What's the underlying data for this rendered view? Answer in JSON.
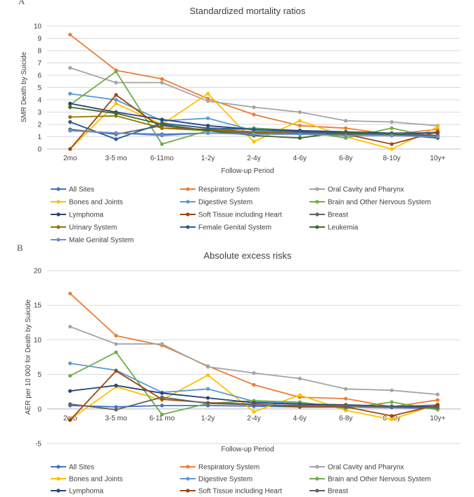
{
  "panels": [
    {
      "letter": "A"
    },
    {
      "letter": "B"
    }
  ],
  "chart_data": [
    {
      "type": "line",
      "title": "Standardized mortality ratios",
      "xlabel": "Follow-up Period",
      "ylabel": "SMR Death by Suicide",
      "ylim": [
        0,
        10
      ],
      "yticks": [
        0,
        1,
        2,
        3,
        4,
        5,
        6,
        7,
        8,
        9,
        10
      ],
      "grid": "horizontal",
      "legend_position": "bottom",
      "categories": [
        "2mo",
        "3-5 mo",
        "6-11mo",
        "1-2y",
        "2-4y",
        "4-6y",
        "6-8y",
        "8-10y",
        "10y+"
      ],
      "series": [
        {
          "name": "All Sites",
          "color": "#4472c4",
          "values": [
            1.5,
            1.3,
            1.2,
            1.3,
            1.3,
            1.2,
            1.2,
            1.1,
            1.1
          ]
        },
        {
          "name": "Respiratory System",
          "color": "#ed7d31",
          "values": [
            9.3,
            6.4,
            5.7,
            4.1,
            2.8,
            1.9,
            1.7,
            1.2,
            1.6
          ]
        },
        {
          "name": "Oral Cavity and Pharynx",
          "color": "#a5a5a5",
          "values": [
            6.6,
            5.4,
            5.4,
            3.9,
            3.4,
            3.0,
            2.3,
            2.2,
            1.9
          ]
        },
        {
          "name": "Bones and Joints",
          "color": "#ffc000",
          "values": [
            0.0,
            3.7,
            2.0,
            4.5,
            0.6,
            2.3,
            1.0,
            0.0,
            1.8
          ]
        },
        {
          "name": "Digestive System",
          "color": "#5b9bd5",
          "values": [
            4.5,
            4.0,
            2.3,
            2.5,
            1.5,
            1.3,
            1.2,
            1.1,
            1.4
          ]
        },
        {
          "name": "Brain and Other Nervous System",
          "color": "#70ad47",
          "values": [
            3.6,
            6.3,
            0.4,
            1.5,
            1.7,
            1.5,
            0.9,
            1.7,
            0.9
          ]
        },
        {
          "name": "Lymphoma",
          "color": "#264478",
          "values": [
            3.7,
            3.0,
            2.4,
            1.9,
            1.6,
            1.5,
            1.4,
            1.3,
            1.3
          ]
        },
        {
          "name": "Soft Tissue including Heart",
          "color": "#9e480e",
          "values": [
            0.0,
            4.4,
            1.7,
            1.6,
            1.4,
            1.3,
            1.2,
            0.4,
            1.4
          ]
        },
        {
          "name": "Breast",
          "color": "#636363",
          "values": [
            1.6,
            1.2,
            1.9,
            1.5,
            1.3,
            1.3,
            1.2,
            1.3,
            1.1
          ]
        },
        {
          "name": "Urinary System",
          "color": "#997300",
          "values": [
            2.6,
            2.7,
            1.7,
            1.5,
            1.4,
            1.2,
            1.3,
            1.2,
            1.0
          ]
        },
        {
          "name": "Female Genital System",
          "color": "#255e91",
          "values": [
            2.2,
            0.8,
            2.1,
            1.7,
            1.6,
            1.4,
            1.3,
            1.2,
            1.0
          ]
        },
        {
          "name": "Leukemia",
          "color": "#43682b",
          "values": [
            3.4,
            2.9,
            2.0,
            1.5,
            1.1,
            0.9,
            1.4,
            1.2,
            0.9
          ]
        },
        {
          "name": "Male Genital System",
          "color": "#698ed0",
          "values": [
            1.5,
            1.3,
            1.1,
            1.3,
            1.2,
            1.2,
            1.1,
            1.1,
            1.0
          ]
        }
      ]
    },
    {
      "type": "line",
      "title": "Absolute excess risks",
      "xlabel": "Follow-up Period",
      "ylabel": "AER per 10 000 for Death by Suicide",
      "ylim": [
        -5,
        20
      ],
      "yticks": [
        -5,
        0,
        5,
        10,
        15,
        20
      ],
      "grid": "horizontal",
      "legend_position": "bottom",
      "categories": [
        "2mo",
        "3-5 mo",
        "6-11 mo",
        "1-2y",
        "2-4y",
        "4-6y",
        "6-8y",
        "8-10y",
        "10y+"
      ],
      "series": [
        {
          "name": "All Sites",
          "color": "#4472c4",
          "values": [
            0.5,
            0.3,
            0.5,
            0.5,
            0.4,
            0.3,
            0.3,
            0.2,
            0.1
          ]
        },
        {
          "name": "Respiratory System",
          "color": "#ed7d31",
          "values": [
            16.7,
            10.6,
            9.2,
            6.2,
            3.5,
            1.7,
            1.5,
            0.3,
            1.3
          ]
        },
        {
          "name": "Oral Cavity and Pharynx",
          "color": "#a5a5a5",
          "values": [
            11.9,
            9.4,
            9.4,
            6.1,
            5.2,
            4.4,
            2.9,
            2.7,
            2.1
          ]
        },
        {
          "name": "Bones and Joints",
          "color": "#ffc000",
          "values": [
            -1.5,
            3.2,
            1.3,
            4.9,
            -0.4,
            2.0,
            -0.2,
            -1.5,
            0.7
          ]
        },
        {
          "name": "Digestive System",
          "color": "#5b9bd5",
          "values": [
            6.6,
            5.6,
            2.4,
            2.9,
            1.1,
            0.8,
            0.5,
            0.3,
            0.6
          ]
        },
        {
          "name": "Brain and Other Nervous System",
          "color": "#70ad47",
          "values": [
            4.8,
            8.2,
            -0.8,
            0.8,
            1.2,
            1.0,
            0.1,
            1.0,
            -0.1
          ]
        },
        {
          "name": "Lymphoma",
          "color": "#264478",
          "values": [
            2.6,
            3.4,
            2.3,
            1.6,
            0.9,
            0.7,
            0.6,
            0.4,
            0.4
          ]
        },
        {
          "name": "Soft Tissue including Heart",
          "color": "#9e480e",
          "values": [
            -1.6,
            5.5,
            1.4,
            0.9,
            0.7,
            0.3,
            0.3,
            -1.0,
            0.6
          ]
        },
        {
          "name": "Breast",
          "color": "#636363",
          "values": [
            0.7,
            -0.1,
            1.7,
            0.8,
            0.6,
            0.5,
            0.5,
            0.3,
            0.2
          ]
        }
      ]
    }
  ]
}
